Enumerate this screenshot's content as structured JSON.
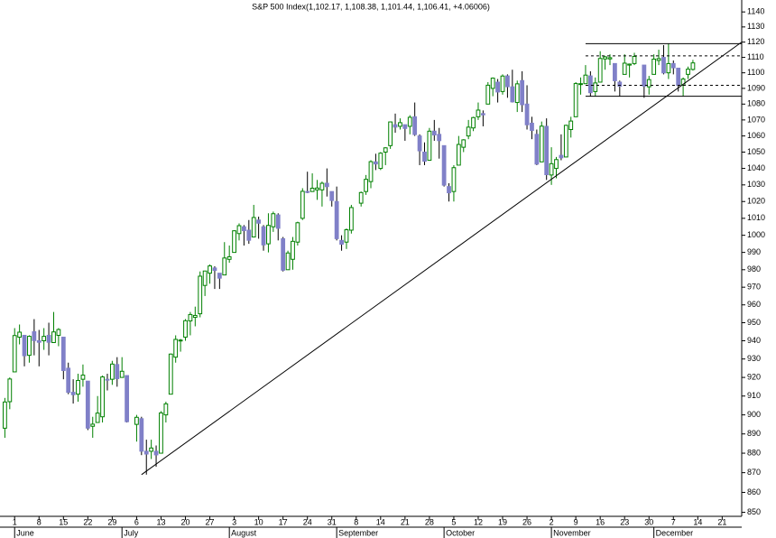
{
  "chart_data": {
    "type": "candlestick",
    "title": "S&P 500 Index(1,102.17, 1,108.38, 1,101.44, 1,106.41, +4.06006)",
    "up_color": "#008000",
    "down_color": "#8080c8",
    "line_color": "#000000",
    "log_scale": true,
    "grid": false,
    "ylim": [
      848,
      1148
    ],
    "yticks": [
      850,
      860,
      870,
      880,
      890,
      900,
      910,
      920,
      930,
      940,
      950,
      960,
      970,
      980,
      990,
      1000,
      1010,
      1020,
      1030,
      1040,
      1050,
      1060,
      1070,
      1080,
      1090,
      1100,
      1110,
      1120,
      1130,
      1140
    ],
    "xlim": [
      2,
      154
    ],
    "xticks": [
      {
        "value": 5,
        "label": "1"
      },
      {
        "value": 10,
        "label": "8"
      },
      {
        "value": 15,
        "label": "15"
      },
      {
        "value": 20,
        "label": "22"
      },
      {
        "value": 25,
        "label": "29"
      },
      {
        "value": 30,
        "label": "6"
      },
      {
        "value": 35,
        "label": "13"
      },
      {
        "value": 40,
        "label": "20"
      },
      {
        "value": 45,
        "label": "27"
      },
      {
        "value": 50,
        "label": "3"
      },
      {
        "value": 55,
        "label": "10"
      },
      {
        "value": 60,
        "label": "17"
      },
      {
        "value": 65,
        "label": "24"
      },
      {
        "value": 70,
        "label": "31"
      },
      {
        "value": 75,
        "label": "8"
      },
      {
        "value": 80,
        "label": "14"
      },
      {
        "value": 85,
        "label": "21"
      },
      {
        "value": 90,
        "label": "28"
      },
      {
        "value": 95,
        "label": "5"
      },
      {
        "value": 100,
        "label": "12"
      },
      {
        "value": 105,
        "label": "19"
      },
      {
        "value": 110,
        "label": "26"
      },
      {
        "value": 115,
        "label": "2"
      },
      {
        "value": 120,
        "label": "9"
      },
      {
        "value": 125,
        "label": "16"
      },
      {
        "value": 130,
        "label": "23"
      },
      {
        "value": 135,
        "label": "30"
      },
      {
        "value": 140,
        "label": "7"
      },
      {
        "value": 145,
        "label": "14"
      },
      {
        "value": 150,
        "label": "21"
      }
    ],
    "month_labels": [
      {
        "value": 5,
        "label": "June"
      },
      {
        "value": 27,
        "label": "July"
      },
      {
        "value": 49,
        "label": "August"
      },
      {
        "value": 71,
        "label": "September"
      },
      {
        "value": 93,
        "label": "October"
      },
      {
        "value": 115,
        "label": "November"
      },
      {
        "value": 136,
        "label": "December"
      }
    ],
    "x": [
      3,
      4,
      5,
      6,
      7,
      8,
      9,
      10,
      11,
      12,
      13,
      14,
      15,
      16,
      17,
      18,
      19,
      20,
      21,
      22,
      23,
      24,
      25,
      26,
      27,
      28,
      30,
      31,
      32,
      33,
      34,
      35,
      36,
      37,
      38,
      39,
      40,
      41,
      42,
      43,
      44,
      45,
      46,
      47,
      48,
      49,
      50,
      51,
      52,
      53,
      54,
      55,
      56,
      57,
      58,
      59,
      60,
      61,
      62,
      63,
      64,
      65,
      66,
      67,
      68,
      69,
      70,
      71,
      72,
      73,
      74,
      76,
      77,
      78,
      79,
      80,
      81,
      82,
      83,
      84,
      85,
      86,
      87,
      88,
      89,
      90,
      91,
      92,
      93,
      94,
      95,
      96,
      97,
      98,
      99,
      100,
      101,
      102,
      103,
      104,
      105,
      106,
      107,
      108,
      109,
      110,
      111,
      112,
      113,
      114,
      115,
      116,
      117,
      118,
      119,
      120,
      121,
      122,
      123,
      124,
      125,
      126,
      127,
      128,
      129,
      130,
      131,
      132,
      134,
      135,
      136,
      137,
      138,
      139,
      140,
      141,
      142,
      143,
      144
    ],
    "open": [
      893,
      907,
      923,
      942,
      943,
      932,
      945,
      940,
      940,
      943,
      939,
      943,
      942,
      925,
      912,
      911,
      919,
      918,
      894,
      896,
      899,
      919,
      919,
      927,
      920,
      921,
      895,
      898,
      881,
      881,
      881,
      880,
      900,
      911,
      931,
      940,
      942,
      951,
      953,
      955,
      971,
      978,
      981,
      978,
      977,
      986,
      990,
      1001,
      1005,
      1003,
      999,
      1009,
      1005,
      995,
      1005,
      1012,
      998,
      980,
      986,
      996,
      1010,
      1026,
      1026,
      1027,
      1027,
      1031,
      1026,
      1020,
      997,
      996,
      1003,
      1019,
      1026,
      1032,
      1044,
      1040,
      1050,
      1054,
      1067,
      1066,
      1067,
      1066,
      1072,
      1060,
      1050,
      1045,
      1063,
      1061,
      1054,
      1029,
      1026,
      1042,
      1053,
      1060,
      1065,
      1072,
      1074,
      1080,
      1090,
      1094,
      1088,
      1098,
      1091,
      1081,
      1095,
      1080,
      1068,
      1061,
      1044,
      1066,
      1036,
      1040,
      1048,
      1047,
      1064,
      1072,
      1093,
      1093,
      1098,
      1088,
      1094,
      1109,
      1109,
      1106,
      1094,
      1099,
      1105,
      1106,
      1105,
      1091,
      1099,
      1108,
      1110,
      1100,
      1106,
      1103,
      1092,
      1099,
      1102.17
    ],
    "high": [
      909,
      920,
      947,
      949,
      943,
      943,
      952,
      946,
      947,
      950,
      956,
      947,
      942,
      928,
      919,
      922,
      927,
      918,
      899,
      910,
      921,
      922,
      929,
      931,
      931,
      921,
      900,
      899,
      887,
      887,
      884,
      902,
      907,
      933,
      943,
      941,
      952,
      956,
      959,
      979,
      979,
      983,
      982,
      978,
      996,
      994,
      1003,
      1007,
      1006,
      1009,
      1018,
      1011,
      1006,
      1013,
      1014,
      1013,
      999,
      991,
      999,
      1008,
      1028,
      1038,
      1037,
      1033,
      1032,
      1040,
      1026,
      1029,
      1000,
      1004,
      1018,
      1026,
      1036,
      1045,
      1049,
      1050,
      1053,
      1069,
      1074,
      1071,
      1067,
      1073,
      1081,
      1061,
      1056,
      1065,
      1070,
      1065,
      1054,
      1031,
      1042,
      1060,
      1058,
      1070,
      1072,
      1081,
      1076,
      1094,
      1097,
      1096,
      1099,
      1099,
      1102,
      1095,
      1101,
      1092,
      1072,
      1064,
      1069,
      1071,
      1053,
      1047,
      1061,
      1067,
      1072,
      1094,
      1097,
      1105,
      1101,
      1097,
      1114,
      1111,
      1112,
      1106,
      1095,
      1112,
      1106,
      1113,
      1105,
      1098,
      1112,
      1115,
      1118,
      1119,
      1108,
      1103,
      1097,
      1104,
      1108.38
    ],
    "low": [
      888,
      903,
      923,
      938,
      926,
      928,
      932,
      926,
      935,
      932,
      939,
      937,
      919,
      911,
      906,
      907,
      915,
      892,
      888,
      896,
      896,
      913,
      916,
      915,
      920,
      896,
      886,
      879,
      869,
      877,
      873,
      880,
      896,
      911,
      928,
      934,
      940,
      943,
      948,
      953,
      965,
      972,
      969,
      969,
      977,
      984,
      990,
      997,
      994,
      995,
      999,
      998,
      991,
      990,
      1002,
      997,
      979,
      980,
      980,
      994,
      1009,
      1025,
      1026,
      1021,
      1017,
      1023,
      1017,
      997,
      991,
      992,
      1001,
      1017,
      1024,
      1028,
      1039,
      1039,
      1042,
      1052,
      1062,
      1064,
      1057,
      1061,
      1060,
      1042,
      1042,
      1045,
      1057,
      1046,
      1029,
      1020,
      1020,
      1042,
      1050,
      1058,
      1063,
      1070,
      1066,
      1080,
      1085,
      1081,
      1086,
      1084,
      1081,
      1075,
      1075,
      1064,
      1058,
      1042,
      1044,
      1033,
      1030,
      1034,
      1045,
      1047,
      1059,
      1072,
      1086,
      1093,
      1085,
      1085,
      1094,
      1102,
      1105,
      1088,
      1085,
      1099,
      1097,
      1105,
      1084,
      1086,
      1099,
      1105,
      1099,
      1096,
      1099,
      1088,
      1085,
      1096,
      1101.44
    ],
    "close": [
      906.83,
      919.14,
      942.87,
      944.74,
      931.76,
      942.46,
      940.09,
      939.14,
      942.43,
      939.15,
      944.89,
      946.21,
      923.72,
      911.97,
      910.71,
      918.37,
      921.23,
      893.04,
      895.1,
      900.94,
      920.26,
      918.9,
      927.23,
      919.32,
      923.33,
      896.42,
      898.72,
      881.03,
      879.56,
      882.68,
      879.13,
      901.05,
      905.84,
      932.68,
      940.74,
      940.38,
      951.13,
      954.58,
      954.07,
      976.29,
      979.26,
      982.18,
      979.62,
      975.15,
      986.75,
      987.48,
      1002.63,
      1005.65,
      1002.72,
      997.08,
      1010.48,
      1007.1,
      994.35,
      1005.81,
      1012.73,
      1004.09,
      979.73,
      989.67,
      996.46,
      1007.37,
      1026.13,
      1025.57,
      1028.0,
      1028.12,
      1030.98,
      1028.93,
      1020.62,
      998.04,
      994.75,
      1003.24,
      1016.4,
      1025.39,
      1033.37,
      1044.14,
      1042.73,
      1049.34,
      1052.63,
      1068.76,
      1065.49,
      1068.3,
      1064.66,
      1071.66,
      1060.87,
      1050.78,
      1044.38,
      1062.98,
      1060.61,
      1057.08,
      1029.85,
      1025.21,
      1040.46,
      1054.72,
      1057.58,
      1065.48,
      1071.49,
      1076.19,
      1073.19,
      1092.02,
      1096.56,
      1087.68,
      1097.91,
      1091.06,
      1081.4,
      1092.91,
      1079.6,
      1066.95,
      1063.41,
      1042.63,
      1066.11,
      1036.19,
      1042.88,
      1045.41,
      1046.5,
      1066.63,
      1069.3,
      1093.08,
      1093.01,
      1098.51,
      1087.24,
      1093.48,
      1109.3,
      1110.32,
      1109.8,
      1094.9,
      1091.38,
      1106.24,
      1105.65,
      1110.63,
      1091.49,
      1095.63,
      1108.86,
      1109.24,
      1099.92,
      1105.98,
      1103.25,
      1091.94,
      1095.95,
      1102.35,
      1106.41
    ],
    "lines": [
      {
        "style": "solid",
        "x": [
          31,
          154
        ],
        "values": [
          869,
          1120
        ]
      },
      {
        "style": "solid",
        "x": [
          122,
          154
        ],
        "values": [
          1119,
          1119
        ]
      },
      {
        "style": "dashed",
        "x": [
          122,
          154
        ],
        "values": [
          1111,
          1111
        ]
      },
      {
        "style": "dashed",
        "x": [
          122,
          154
        ],
        "values": [
          1092,
          1092
        ]
      },
      {
        "style": "solid",
        "x": [
          122,
          154
        ],
        "values": [
          1085,
          1085
        ]
      }
    ]
  }
}
